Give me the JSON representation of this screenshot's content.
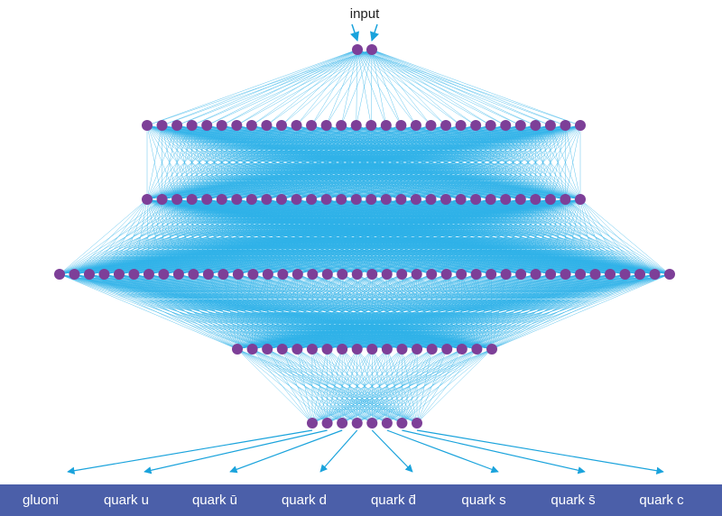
{
  "input_label": "input",
  "outputs": [
    "gluoni",
    "quark u",
    "quark ū",
    "quark d",
    "quark d̄",
    "quark s",
    "quark s̄",
    "quark c"
  ]
}
